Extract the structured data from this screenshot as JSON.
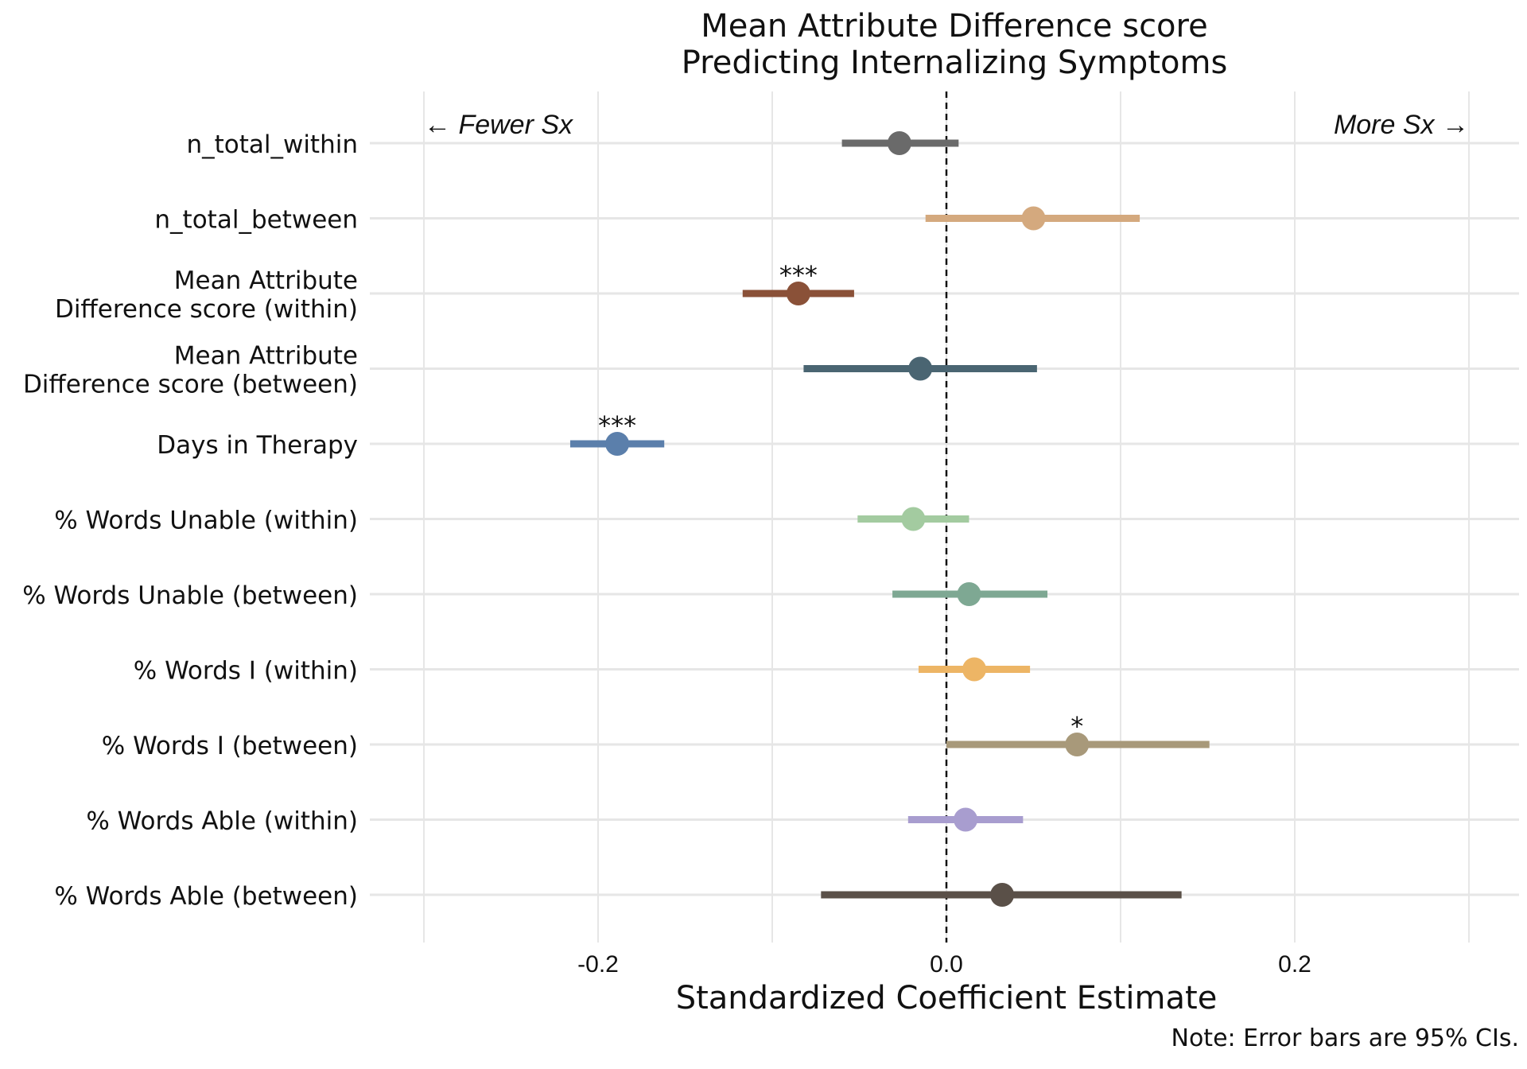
{
  "chart_data": {
    "type": "forest",
    "title": [
      "Mean Attribute Difference score",
      "Predicting Internalizing Symptoms"
    ],
    "xlabel": "Standardized Coefficient Estimate",
    "note": "Note: Error bars are 95% CIs.",
    "annotations": {
      "left": "← Fewer Sx",
      "right": "More Sx →"
    },
    "xlim": [
      -0.3,
      0.33
    ],
    "xticks": [
      -0.2,
      0.0,
      0.2
    ],
    "xtick_labels": [
      "-0.2",
      "0.0",
      "0.2"
    ],
    "reference_line": 0,
    "grid": true,
    "rows": [
      {
        "label": [
          "n_total_within"
        ],
        "estimate": -0.027,
        "lower": -0.06,
        "upper": 0.007,
        "color": "#6a6a6a",
        "sig": ""
      },
      {
        "label": [
          "n_total_between"
        ],
        "estimate": 0.05,
        "lower": -0.012,
        "upper": 0.111,
        "color": "#d4a97e",
        "sig": ""
      },
      {
        "label": [
          "Mean Attribute",
          "Difference score (within)"
        ],
        "estimate": -0.085,
        "lower": -0.117,
        "upper": -0.053,
        "color": "#8a5138",
        "sig": "***"
      },
      {
        "label": [
          "Mean Attribute",
          "Difference score (between)"
        ],
        "estimate": -0.015,
        "lower": -0.082,
        "upper": 0.052,
        "color": "#4a6572",
        "sig": ""
      },
      {
        "label": [
          "Days in Therapy"
        ],
        "estimate": -0.189,
        "lower": -0.216,
        "upper": -0.162,
        "color": "#5b7fab",
        "sig": "***"
      },
      {
        "label": [
          "% Words Unable (within)"
        ],
        "estimate": -0.019,
        "lower": -0.051,
        "upper": 0.013,
        "color": "#a3cba0",
        "sig": ""
      },
      {
        "label": [
          "% Words Unable (between)"
        ],
        "estimate": 0.013,
        "lower": -0.031,
        "upper": 0.058,
        "color": "#7ea893",
        "sig": ""
      },
      {
        "label": [
          "% Words I (within)"
        ],
        "estimate": 0.016,
        "lower": -0.016,
        "upper": 0.048,
        "color": "#edb565",
        "sig": ""
      },
      {
        "label": [
          "% Words I (between)"
        ],
        "estimate": 0.075,
        "lower": 0.0,
        "upper": 0.151,
        "color": "#a8997a",
        "sig": "*"
      },
      {
        "label": [
          "% Words Able (within)"
        ],
        "estimate": 0.011,
        "lower": -0.022,
        "upper": 0.044,
        "color": "#a89dcf",
        "sig": ""
      },
      {
        "label": [
          "% Words Able (between)"
        ],
        "estimate": 0.032,
        "lower": -0.072,
        "upper": 0.135,
        "color": "#5a5048",
        "sig": ""
      }
    ]
  }
}
